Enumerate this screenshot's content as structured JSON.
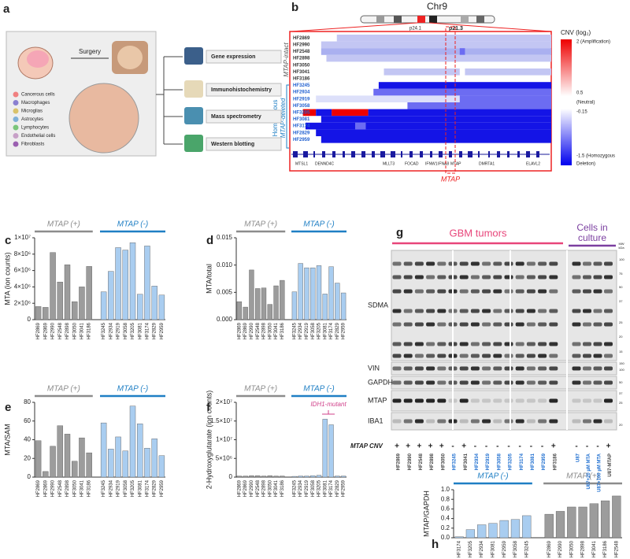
{
  "panel_a": {
    "label": "a",
    "surgery": "Surgery",
    "cell_types": [
      "Cancerous cells",
      "Macrophages",
      "Microglias",
      "Astrocytes",
      "Lymphocytes",
      "Endothelial cells",
      "Fibroblasts"
    ],
    "methods": [
      "Gene expression",
      "Immunohistochemistry",
      "Mass spectrometry",
      "Western blotting"
    ]
  },
  "panel_b": {
    "label": "b",
    "chromosome": "Chr9",
    "bands": [
      "p24.1",
      "p21.3"
    ],
    "intact_label": "MTAP-intact",
    "deleted_label": [
      "Homozygous",
      "MTAP-deleted"
    ],
    "intact_samples": [
      "HF2869",
      "HF2990",
      "HF2548",
      "HF2898",
      "HF3050",
      "HF3041",
      "HF3186"
    ],
    "deleted_samples": [
      "HF3245",
      "HF2934",
      "HF2919",
      "HF3058",
      "HF3205",
      "HF3081",
      "HF3174",
      "HF2829",
      "HF2959"
    ],
    "genes": [
      "MTSL1",
      "DENND4C",
      "MLLT3",
      "FOCAD",
      "IFNW1",
      "IFNA8",
      "MTAP",
      "DMRTA1",
      "ELAVL2"
    ],
    "highlight": "MTAP",
    "legend": [
      "CNV (log₂)",
      "2 (Amplification)",
      "0.5",
      "(Neutral)",
      "-0.15",
      "-1.5 (Homozygous",
      "Deletion)"
    ]
  },
  "chart_data": [
    {
      "type": "bar",
      "panel": "c",
      "ylabel": "MTA (ion counts)",
      "categories": [
        "HF2869",
        "HF2869",
        "HF2990",
        "HF2548",
        "HF2898",
        "HF3050",
        "HF3041",
        "HF3186",
        "HF3245",
        "HF2934",
        "HF2919",
        "HF3058",
        "HF3205",
        "HF3081",
        "HF3174",
        "HF2829",
        "HF2959"
      ],
      "series": [
        {
          "name": "MTAP (+)",
          "color": "#9c9c9c",
          "line_color": "#8c8c8c",
          "values": [
            1600000,
            1500000,
            8200000,
            4600000,
            6700000,
            2200000,
            4000000,
            6500000,
            null,
            null,
            null,
            null,
            null,
            null,
            null,
            null,
            null
          ]
        },
        {
          "name": "MTAP (-)",
          "color": "#a9cdf0",
          "line_color": "#1f7fc4",
          "values": [
            null,
            null,
            null,
            null,
            null,
            null,
            null,
            null,
            3400000,
            5900000,
            8800000,
            8500000,
            9400000,
            3100000,
            9000000,
            4100000,
            3000000
          ]
        }
      ],
      "ylim": [
        0,
        10000000
      ],
      "yticks": [
        0,
        {
          "value": 2000000,
          "label": "2×10⁶"
        },
        {
          "value": 4000000,
          "label": "4×10⁶"
        },
        {
          "value": 6000000,
          "label": "6×10⁶"
        },
        {
          "value": 8000000,
          "label": "8×10⁶"
        },
        {
          "value": 10000000,
          "label": "1×10⁷"
        }
      ]
    },
    {
      "type": "bar",
      "panel": "d",
      "ylabel": "MTA/total",
      "categories": [
        "HF2869",
        "HF2869",
        "HF2990",
        "HF2548",
        "HF2898",
        "HF3050",
        "HF3041",
        "HF3186",
        "HF3245",
        "HF2934",
        "HF2919",
        "HF3058",
        "HF3205",
        "HF3081",
        "HF3174",
        "HF2829",
        "HF2959"
      ],
      "series": [
        {
          "name": "MTAP (+)",
          "color": "#9c9c9c",
          "line_color": "#8c8c8c",
          "values": [
            0.0033,
            0.0023,
            0.0091,
            0.0057,
            0.0058,
            0.0028,
            0.0062,
            0.0072,
            null,
            null,
            null,
            null,
            null,
            null,
            null,
            null,
            null
          ]
        },
        {
          "name": "MTAP (-)",
          "color": "#a9cdf0",
          "line_color": "#1f7fc4",
          "values": [
            null,
            null,
            null,
            null,
            null,
            null,
            null,
            null,
            0.0051,
            0.0103,
            0.0095,
            0.0095,
            0.0099,
            0.0047,
            0.0097,
            0.0067,
            0.0049
          ]
        }
      ],
      "ylim": [
        0,
        0.015
      ],
      "yticks": [
        {
          "value": 0,
          "label": "0.000"
        },
        0.005,
        {
          "value": 0.01,
          "label": "0.010"
        },
        0.015
      ]
    },
    {
      "type": "bar",
      "panel": "e",
      "ylabel": "MTA/SAM",
      "categories": [
        "HF2869",
        "HF2869",
        "HF2990",
        "HF2548",
        "HF2898",
        "HF3050",
        "HF3041",
        "HF3186",
        "HF3245",
        "HF2934",
        "HF2919",
        "HF3058",
        "HF3205",
        "HF3081",
        "HF3174",
        "HF2829",
        "HF2959"
      ],
      "series": [
        {
          "name": "MTAP (+)",
          "color": "#9c9c9c",
          "line_color": "#8c8c8c",
          "values": [
            39,
            6,
            33,
            55,
            46,
            17,
            42,
            26,
            null,
            null,
            null,
            null,
            null,
            null,
            null,
            null,
            null
          ]
        },
        {
          "name": "MTAP (-)",
          "color": "#a9cdf0",
          "line_color": "#1f7fc4",
          "values": [
            null,
            null,
            null,
            null,
            null,
            null,
            null,
            null,
            58,
            30,
            43,
            28,
            76,
            57,
            31,
            41,
            23
          ]
        }
      ],
      "ylim": [
        0,
        80
      ],
      "yticks": [
        0,
        20,
        40,
        60,
        80
      ]
    },
    {
      "type": "bar",
      "panel": "f",
      "ylabel": "2-Hydroxyglutarate (ion counts)",
      "annotation": "IDH1-mutant",
      "categories": [
        "HF2869",
        "HF2869",
        "HF2990",
        "HF2548",
        "HF2898",
        "HF3050",
        "HF3041",
        "HF3186",
        "HF3245",
        "HF2934",
        "HF2919",
        "HF3058",
        "HF3205",
        "HF3081",
        "HF3174",
        "HF2829",
        "HF2959"
      ],
      "series": [
        {
          "name": "MTAP (+)",
          "color": "#9c9c9c",
          "line_color": "#8c8c8c",
          "values": [
            300000,
            300000,
            400000,
            400000,
            300000,
            400000,
            300000,
            300000,
            null,
            null,
            null,
            null,
            null,
            null,
            null,
            null,
            null
          ]
        },
        {
          "name": "MTAP (-)",
          "color": "#a9cdf0",
          "line_color": "#1f7fc4",
          "values": [
            null,
            null,
            null,
            null,
            null,
            null,
            null,
            null,
            200000,
            300000,
            300000,
            400000,
            500000,
            15500000,
            14000000,
            300000,
            300000
          ]
        }
      ],
      "ylim": [
        0,
        20000000
      ],
      "yticks": [
        0,
        {
          "value": 5000000,
          "label": "5×10⁶"
        },
        {
          "value": 10000000,
          "label": "1×10⁷"
        },
        {
          "value": 15000000,
          "label": "1.5×10⁷"
        },
        {
          "value": 20000000,
          "label": "2×10⁷"
        }
      ]
    },
    {
      "type": "bar",
      "panel": "h",
      "ylabel": "MTAP/GAPDH",
      "categories": [
        "HF3174",
        "HF3205",
        "HF2934",
        "HF3081",
        "HF2959",
        "HF3058",
        "HF3245",
        "HF2869",
        "HF2990",
        "HF3050",
        "HF2898",
        "HF3041",
        "HF3186",
        "HF2548"
      ],
      "series": [
        {
          "name": "MTAP (-)",
          "color": "#a9cdf0",
          "line_color": "#1f7fc4",
          "values": [
            0.02,
            0.17,
            0.27,
            0.3,
            0.36,
            0.38,
            0.46,
            null,
            null,
            null,
            null,
            null,
            null,
            null
          ]
        },
        {
          "name": "MTAP (+)",
          "color": "#9c9c9c",
          "line_color": "#8c8c8c",
          "values": [
            null,
            null,
            null,
            null,
            null,
            null,
            null,
            0.49,
            0.55,
            0.64,
            0.64,
            0.71,
            0.77,
            0.87
          ]
        }
      ],
      "ylim": [
        0,
        1
      ],
      "yticks": [
        {
          "value": 0,
          "label": "0.0"
        },
        0.2,
        0.4,
        0.6,
        0.8,
        {
          "value": 1,
          "label": "1.0"
        }
      ]
    }
  ],
  "panel_g": {
    "label": "g",
    "tumors_label": "GBM tumors",
    "cells_label": [
      "Cells in",
      "culture"
    ],
    "mw_label": [
      "MW",
      "kDa"
    ],
    "markers": [
      "100",
      "75",
      "50",
      "37",
      "25",
      "20",
      "15",
      "150",
      "100",
      "50",
      "37",
      "25",
      "20"
    ],
    "rows": [
      "SDMA",
      "VIN",
      "GAPDH",
      "MTAP",
      "IBA1"
    ],
    "cnv_label": "MTAP CNV",
    "lanes": [
      "HF2869",
      "HF2990",
      "HF2548",
      "HF2898",
      "HF3050",
      "HF3245",
      "HF3041",
      "HF2934",
      "HF2919",
      "HF3058",
      "HF3205",
      "HF3174",
      "HF3081",
      "HF2959",
      "HF3186",
      "U87",
      "U87+20 µM MTA",
      "U87+100 µM MTA",
      "U87-MTAP"
    ],
    "cnv": [
      "+",
      "+",
      "+",
      "+",
      "+",
      "-",
      "+",
      "-",
      "-",
      "-",
      "-",
      "-",
      "-",
      "-",
      "+",
      "-",
      "-",
      "-",
      "+"
    ]
  }
}
